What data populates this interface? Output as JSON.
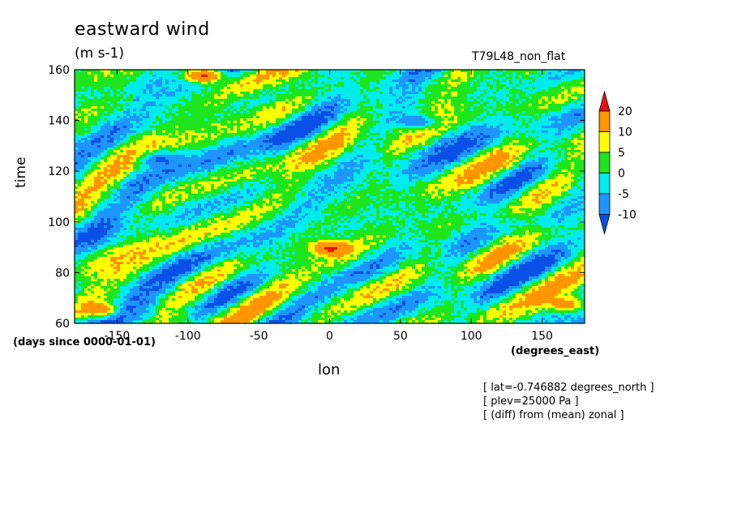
{
  "title": "eastward wind",
  "units": "(m s-1)",
  "run_label": "T79L48_non_flat",
  "info_lines": [
    "[ lat=-0.746882 degrees_north ]",
    "[ plev=25000 Pa ]",
    "[ (diff) from (mean) zonal ]"
  ],
  "chart_data": {
    "type": "heatmap",
    "xlabel": "lon",
    "ylabel": "time",
    "x_units": "(degrees_east)",
    "y_units": "(days since 0000-01-01)",
    "xlim": [
      -180,
      180
    ],
    "ylim": [
      60,
      160
    ],
    "x_ticks": [
      -150,
      -100,
      -50,
      0,
      50,
      100,
      150
    ],
    "y_ticks": [
      60,
      80,
      100,
      120,
      140,
      160
    ],
    "colorbar": {
      "levels": [
        -10,
        -5,
        0,
        5,
        10,
        20
      ],
      "colors": [
        "#0a50e6",
        "#1e96ff",
        "#00ebeb",
        "#1ee61e",
        "#ffff00",
        "#ff9600",
        "#e61414"
      ],
      "extend": "both"
    },
    "approx_features": [
      {
        "lon": 0,
        "time": 90,
        "value": 22
      },
      {
        "lon": -90,
        "time": 158,
        "value": 21
      },
      {
        "lon": 165,
        "time": 68,
        "value": 15
      },
      {
        "lon": -165,
        "time": 66,
        "value": 16
      },
      {
        "lon": -120,
        "time": 125,
        "value": -11
      },
      {
        "lon": 60,
        "time": 140,
        "value": -10
      }
    ]
  }
}
